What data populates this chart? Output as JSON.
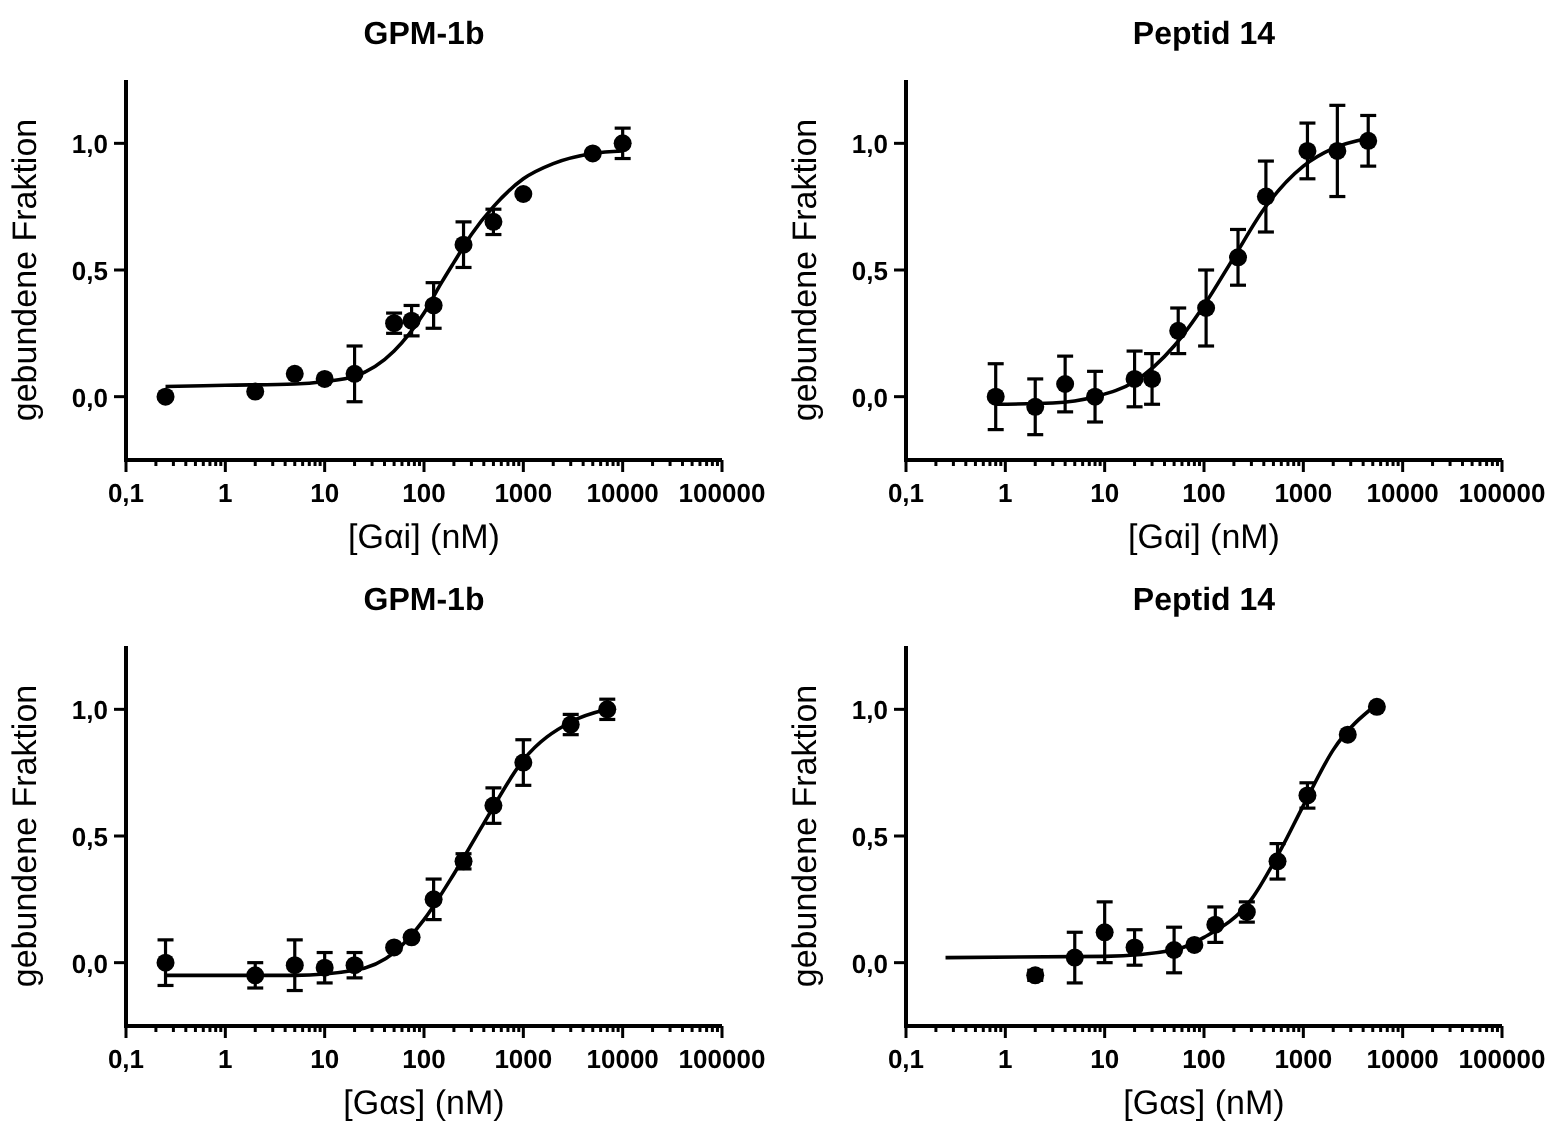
{
  "chart_data": [
    {
      "type": "scatter",
      "title": "GPM-1b",
      "xlabel": "[Gαi] (nM)",
      "ylabel": "gebundene Fraktion",
      "log": "x",
      "marker": "circle",
      "xlim": [
        0.1,
        100000
      ],
      "ylim": [
        -0.25,
        1.25
      ],
      "xticks": [
        {
          "value": 0.1,
          "label": "0,1"
        },
        {
          "value": 0.2,
          "label": null
        },
        {
          "value": 0.3,
          "label": null
        },
        {
          "value": 0.4,
          "label": null
        },
        {
          "value": 0.5,
          "label": null
        },
        {
          "value": 0.6,
          "label": null
        },
        {
          "value": 0.7,
          "label": null
        },
        {
          "value": 0.8,
          "label": null
        },
        {
          "value": 0.9,
          "label": null
        },
        1,
        {
          "value": 2,
          "label": null
        },
        {
          "value": 3,
          "label": null
        },
        {
          "value": 4,
          "label": null
        },
        {
          "value": 5,
          "label": null
        },
        {
          "value": 6,
          "label": null
        },
        {
          "value": 7,
          "label": null
        },
        {
          "value": 8,
          "label": null
        },
        {
          "value": 9,
          "label": null
        },
        10,
        {
          "value": 20,
          "label": null
        },
        {
          "value": 30,
          "label": null
        },
        {
          "value": 40,
          "label": null
        },
        {
          "value": 50,
          "label": null
        },
        {
          "value": 60,
          "label": null
        },
        {
          "value": 70,
          "label": null
        },
        {
          "value": 80,
          "label": null
        },
        {
          "value": 90,
          "label": null
        },
        100,
        {
          "value": 200,
          "label": null
        },
        {
          "value": 300,
          "label": null
        },
        {
          "value": 400,
          "label": null
        },
        {
          "value": 500,
          "label": null
        },
        {
          "value": 600,
          "label": null
        },
        {
          "value": 700,
          "label": null
        },
        {
          "value": 800,
          "label": null
        },
        {
          "value": 900,
          "label": null
        },
        1000,
        {
          "value": 2000,
          "label": null
        },
        {
          "value": 3000,
          "label": null
        },
        {
          "value": 4000,
          "label": null
        },
        {
          "value": 5000,
          "label": null
        },
        {
          "value": 6000,
          "label": null
        },
        {
          "value": 7000,
          "label": null
        },
        {
          "value": 8000,
          "label": null
        },
        {
          "value": 9000,
          "label": null
        },
        10000,
        {
          "value": 20000,
          "label": null
        },
        {
          "value": 30000,
          "label": null
        },
        {
          "value": 40000,
          "label": null
        },
        {
          "value": 50000,
          "label": null
        },
        {
          "value": 60000,
          "label": null
        },
        {
          "value": 70000,
          "label": null
        },
        {
          "value": 80000,
          "label": null
        },
        {
          "value": 90000,
          "label": null
        },
        100000
      ],
      "yticks": [
        {
          "value": 0,
          "label": "0,0"
        },
        {
          "value": 0.5,
          "label": "0,5"
        },
        {
          "value": 1,
          "label": "1,0"
        }
      ],
      "series": [
        {
          "color": "#000000",
          "x": [
            0.25,
            2,
            5,
            10,
            20,
            50,
            75,
            125,
            250,
            500,
            1000,
            5000,
            10000
          ],
          "values": [
            0.0,
            0.02,
            0.09,
            0.07,
            0.09,
            0.29,
            0.3,
            0.36,
            0.6,
            0.69,
            0.8,
            0.96,
            1.0
          ],
          "errors": [
            null,
            null,
            null,
            null,
            0.11,
            0.04,
            0.06,
            0.09,
            0.09,
            0.05,
            null,
            null,
            0.06
          ]
        },
        {
          "type": "line",
          "marker": "none",
          "color": "#000000",
          "x": [
            0.25,
            1,
            5,
            10,
            20,
            50,
            100,
            150,
            200,
            300,
            500,
            1000,
            2000,
            5000,
            10000
          ],
          "values": [
            0.04,
            0.045,
            0.05,
            0.06,
            0.08,
            0.18,
            0.33,
            0.45,
            0.53,
            0.64,
            0.75,
            0.86,
            0.92,
            0.96,
            0.97
          ]
        }
      ]
    },
    {
      "type": "scatter",
      "title": "Peptid 14",
      "xlabel": "[Gαi] (nM)",
      "ylabel": "gebundene Fraktion",
      "log": "x",
      "marker": "circle",
      "xlim": [
        0.1,
        100000
      ],
      "ylim": [
        -0.25,
        1.25
      ],
      "xticks": [
        {
          "value": 0.1,
          "label": "0,1"
        },
        {
          "value": 0.2,
          "label": null
        },
        {
          "value": 0.3,
          "label": null
        },
        {
          "value": 0.4,
          "label": null
        },
        {
          "value": 0.5,
          "label": null
        },
        {
          "value": 0.6,
          "label": null
        },
        {
          "value": 0.7,
          "label": null
        },
        {
          "value": 0.8,
          "label": null
        },
        {
          "value": 0.9,
          "label": null
        },
        1,
        {
          "value": 2,
          "label": null
        },
        {
          "value": 3,
          "label": null
        },
        {
          "value": 4,
          "label": null
        },
        {
          "value": 5,
          "label": null
        },
        {
          "value": 6,
          "label": null
        },
        {
          "value": 7,
          "label": null
        },
        {
          "value": 8,
          "label": null
        },
        {
          "value": 9,
          "label": null
        },
        10,
        {
          "value": 20,
          "label": null
        },
        {
          "value": 30,
          "label": null
        },
        {
          "value": 40,
          "label": null
        },
        {
          "value": 50,
          "label": null
        },
        {
          "value": 60,
          "label": null
        },
        {
          "value": 70,
          "label": null
        },
        {
          "value": 80,
          "label": null
        },
        {
          "value": 90,
          "label": null
        },
        100,
        {
          "value": 200,
          "label": null
        },
        {
          "value": 300,
          "label": null
        },
        {
          "value": 400,
          "label": null
        },
        {
          "value": 500,
          "label": null
        },
        {
          "value": 600,
          "label": null
        },
        {
          "value": 700,
          "label": null
        },
        {
          "value": 800,
          "label": null
        },
        {
          "value": 900,
          "label": null
        },
        1000,
        {
          "value": 2000,
          "label": null
        },
        {
          "value": 3000,
          "label": null
        },
        {
          "value": 4000,
          "label": null
        },
        {
          "value": 5000,
          "label": null
        },
        {
          "value": 6000,
          "label": null
        },
        {
          "value": 7000,
          "label": null
        },
        {
          "value": 8000,
          "label": null
        },
        {
          "value": 9000,
          "label": null
        },
        10000,
        {
          "value": 20000,
          "label": null
        },
        {
          "value": 30000,
          "label": null
        },
        {
          "value": 40000,
          "label": null
        },
        {
          "value": 50000,
          "label": null
        },
        {
          "value": 60000,
          "label": null
        },
        {
          "value": 70000,
          "label": null
        },
        {
          "value": 80000,
          "label": null
        },
        {
          "value": 90000,
          "label": null
        },
        100000
      ],
      "yticks": [
        {
          "value": 0,
          "label": "0,0"
        },
        {
          "value": 0.5,
          "label": "0,5"
        },
        {
          "value": 1,
          "label": "1,0"
        }
      ],
      "series": [
        {
          "color": "#000000",
          "x": [
            0.8,
            2,
            4,
            8,
            20,
            30,
            55,
            105,
            220,
            420,
            1100,
            2200,
            4500
          ],
          "values": [
            0.0,
            -0.04,
            0.05,
            0.0,
            0.07,
            0.07,
            0.26,
            0.35,
            0.55,
            0.79,
            0.97,
            0.97,
            1.01
          ],
          "errors": [
            0.13,
            0.11,
            0.11,
            0.1,
            0.11,
            0.1,
            0.09,
            0.15,
            0.11,
            0.14,
            0.11,
            0.18,
            0.1
          ]
        },
        {
          "type": "line",
          "marker": "none",
          "color": "#000000",
          "x": [
            0.8,
            3,
            8,
            20,
            50,
            100,
            200,
            400,
            1000,
            2000,
            4500
          ],
          "values": [
            -0.03,
            -0.025,
            0.0,
            0.06,
            0.2,
            0.36,
            0.55,
            0.74,
            0.91,
            0.98,
            1.02
          ]
        }
      ]
    },
    {
      "type": "scatter",
      "title": "GPM-1b",
      "xlabel": "[Gαs] (nM)",
      "ylabel": "gebundene Fraktion",
      "log": "x",
      "marker": "circle",
      "xlim": [
        0.1,
        100000
      ],
      "ylim": [
        -0.25,
        1.25
      ],
      "xticks": [
        {
          "value": 0.1,
          "label": "0,1"
        },
        {
          "value": 0.2,
          "label": null
        },
        {
          "value": 0.3,
          "label": null
        },
        {
          "value": 0.4,
          "label": null
        },
        {
          "value": 0.5,
          "label": null
        },
        {
          "value": 0.6,
          "label": null
        },
        {
          "value": 0.7,
          "label": null
        },
        {
          "value": 0.8,
          "label": null
        },
        {
          "value": 0.9,
          "label": null
        },
        1,
        {
          "value": 2,
          "label": null
        },
        {
          "value": 3,
          "label": null
        },
        {
          "value": 4,
          "label": null
        },
        {
          "value": 5,
          "label": null
        },
        {
          "value": 6,
          "label": null
        },
        {
          "value": 7,
          "label": null
        },
        {
          "value": 8,
          "label": null
        },
        {
          "value": 9,
          "label": null
        },
        10,
        {
          "value": 20,
          "label": null
        },
        {
          "value": 30,
          "label": null
        },
        {
          "value": 40,
          "label": null
        },
        {
          "value": 50,
          "label": null
        },
        {
          "value": 60,
          "label": null
        },
        {
          "value": 70,
          "label": null
        },
        {
          "value": 80,
          "label": null
        },
        {
          "value": 90,
          "label": null
        },
        100,
        {
          "value": 200,
          "label": null
        },
        {
          "value": 300,
          "label": null
        },
        {
          "value": 400,
          "label": null
        },
        {
          "value": 500,
          "label": null
        },
        {
          "value": 600,
          "label": null
        },
        {
          "value": 700,
          "label": null
        },
        {
          "value": 800,
          "label": null
        },
        {
          "value": 900,
          "label": null
        },
        1000,
        {
          "value": 2000,
          "label": null
        },
        {
          "value": 3000,
          "label": null
        },
        {
          "value": 4000,
          "label": null
        },
        {
          "value": 5000,
          "label": null
        },
        {
          "value": 6000,
          "label": null
        },
        {
          "value": 7000,
          "label": null
        },
        {
          "value": 8000,
          "label": null
        },
        {
          "value": 9000,
          "label": null
        },
        10000,
        {
          "value": 20000,
          "label": null
        },
        {
          "value": 30000,
          "label": null
        },
        {
          "value": 40000,
          "label": null
        },
        {
          "value": 50000,
          "label": null
        },
        {
          "value": 60000,
          "label": null
        },
        {
          "value": 70000,
          "label": null
        },
        {
          "value": 80000,
          "label": null
        },
        {
          "value": 90000,
          "label": null
        },
        100000
      ],
      "yticks": [
        {
          "value": 0,
          "label": "0,0"
        },
        {
          "value": 0.5,
          "label": "0,5"
        },
        {
          "value": 1,
          "label": "1,0"
        }
      ],
      "series": [
        {
          "color": "#000000",
          "x": [
            0.25,
            2,
            5,
            10,
            20,
            50,
            75,
            125,
            250,
            500,
            1000,
            3000,
            7000
          ],
          "values": [
            0.0,
            -0.05,
            -0.01,
            -0.02,
            -0.01,
            0.06,
            0.1,
            0.25,
            0.4,
            0.62,
            0.79,
            0.94,
            1.0
          ],
          "errors": [
            0.09,
            0.05,
            0.1,
            0.06,
            0.05,
            null,
            null,
            0.08,
            0.03,
            0.07,
            0.09,
            0.04,
            0.04
          ]
        },
        {
          "type": "line",
          "marker": "none",
          "color": "#000000",
          "x": [
            0.25,
            5,
            20,
            50,
            100,
            200,
            400,
            1000,
            3000,
            7000
          ],
          "values": [
            -0.05,
            -0.05,
            -0.03,
            0.04,
            0.17,
            0.35,
            0.55,
            0.8,
            0.95,
            1.0
          ]
        }
      ]
    },
    {
      "type": "scatter",
      "title": "Peptid 14",
      "xlabel": "[Gαs] (nM)",
      "ylabel": "gebundene Fraktion",
      "log": "x",
      "marker": "circle",
      "xlim": [
        0.1,
        100000
      ],
      "ylim": [
        -0.25,
        1.25
      ],
      "xticks": [
        {
          "value": 0.1,
          "label": "0,1"
        },
        {
          "value": 0.2,
          "label": null
        },
        {
          "value": 0.3,
          "label": null
        },
        {
          "value": 0.4,
          "label": null
        },
        {
          "value": 0.5,
          "label": null
        },
        {
          "value": 0.6,
          "label": null
        },
        {
          "value": 0.7,
          "label": null
        },
        {
          "value": 0.8,
          "label": null
        },
        {
          "value": 0.9,
          "label": null
        },
        1,
        {
          "value": 2,
          "label": null
        },
        {
          "value": 3,
          "label": null
        },
        {
          "value": 4,
          "label": null
        },
        {
          "value": 5,
          "label": null
        },
        {
          "value": 6,
          "label": null
        },
        {
          "value": 7,
          "label": null
        },
        {
          "value": 8,
          "label": null
        },
        {
          "value": 9,
          "label": null
        },
        10,
        {
          "value": 20,
          "label": null
        },
        {
          "value": 30,
          "label": null
        },
        {
          "value": 40,
          "label": null
        },
        {
          "value": 50,
          "label": null
        },
        {
          "value": 60,
          "label": null
        },
        {
          "value": 70,
          "label": null
        },
        {
          "value": 80,
          "label": null
        },
        {
          "value": 90,
          "label": null
        },
        100,
        {
          "value": 200,
          "label": null
        },
        {
          "value": 300,
          "label": null
        },
        {
          "value": 400,
          "label": null
        },
        {
          "value": 500,
          "label": null
        },
        {
          "value": 600,
          "label": null
        },
        {
          "value": 700,
          "label": null
        },
        {
          "value": 800,
          "label": null
        },
        {
          "value": 900,
          "label": null
        },
        1000,
        {
          "value": 2000,
          "label": null
        },
        {
          "value": 3000,
          "label": null
        },
        {
          "value": 4000,
          "label": null
        },
        {
          "value": 5000,
          "label": null
        },
        {
          "value": 6000,
          "label": null
        },
        {
          "value": 7000,
          "label": null
        },
        {
          "value": 8000,
          "label": null
        },
        {
          "value": 9000,
          "label": null
        },
        10000,
        {
          "value": 20000,
          "label": null
        },
        {
          "value": 30000,
          "label": null
        },
        {
          "value": 40000,
          "label": null
        },
        {
          "value": 50000,
          "label": null
        },
        {
          "value": 60000,
          "label": null
        },
        {
          "value": 70000,
          "label": null
        },
        {
          "value": 80000,
          "label": null
        },
        {
          "value": 90000,
          "label": null
        },
        100000
      ],
      "yticks": [
        {
          "value": 0,
          "label": "0,0"
        },
        {
          "value": 0.5,
          "label": "0,5"
        },
        {
          "value": 1,
          "label": "1,0"
        }
      ],
      "series": [
        {
          "color": "#000000",
          "x": [
            2,
            5,
            10,
            20,
            50,
            80,
            130,
            270,
            550,
            1100,
            2800,
            5500
          ],
          "values": [
            -0.05,
            0.02,
            0.12,
            0.06,
            0.05,
            0.07,
            0.15,
            0.2,
            0.4,
            0.66,
            0.9,
            1.01
          ],
          "errors": [
            0.02,
            0.1,
            0.12,
            0.07,
            0.09,
            null,
            0.07,
            0.04,
            0.07,
            0.05,
            null,
            null
          ]
        },
        {
          "type": "line",
          "marker": "none",
          "color": "#000000",
          "x": [
            0.25,
            10,
            50,
            100,
            300,
            600,
            1000,
            2000,
            5500
          ],
          "values": [
            0.02,
            0.025,
            0.05,
            0.1,
            0.25,
            0.45,
            0.62,
            0.84,
            1.02
          ]
        }
      ]
    }
  ]
}
